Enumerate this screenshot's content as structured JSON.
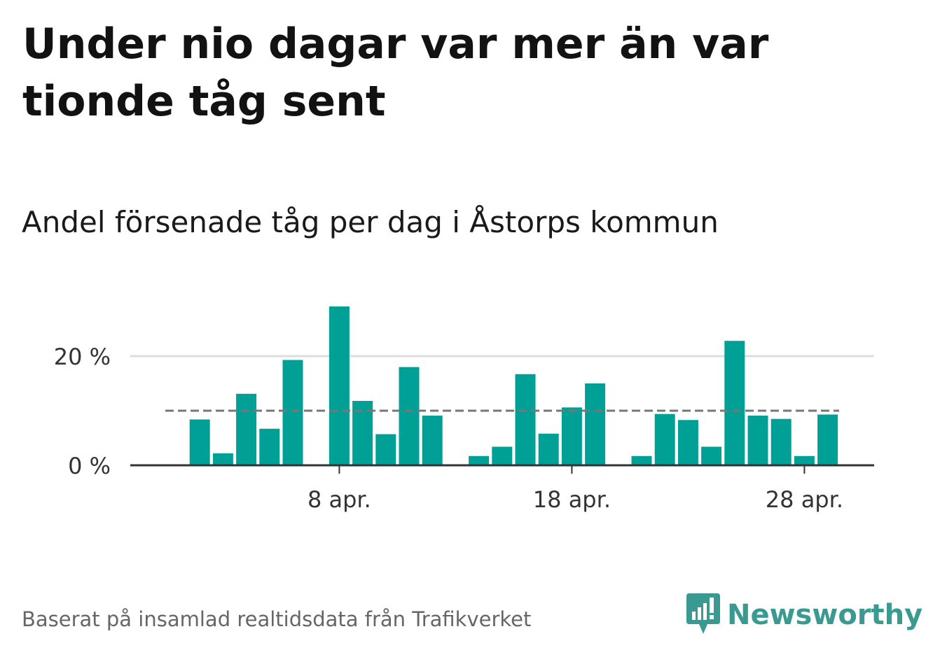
{
  "title": "Under nio dagar var mer än var tionde tåg sent",
  "subtitle": "Andel försenade tåg per dag i Åstorps kommun",
  "footer": "Baserat på insamlad realtidsdata från Trafikverket",
  "brand": {
    "name": "Newsworthy",
    "color": "#3a9a91",
    "icon": "newsworthy-logo-icon"
  },
  "colors": {
    "bar": "#00a096",
    "reference_line": "#777777",
    "grid": "#dddddd",
    "axis": "#333333"
  },
  "chart_data": {
    "type": "bar",
    "x": [
      1,
      2,
      3,
      4,
      5,
      6,
      7,
      8,
      9,
      10,
      11,
      12,
      13,
      14,
      15,
      16,
      17,
      18,
      19,
      20,
      21,
      22,
      23,
      24,
      25,
      26,
      27,
      28,
      29,
      30
    ],
    "values": [
      0,
      8.4,
      2.2,
      13.1,
      6.7,
      19.3,
      0,
      29.1,
      11.8,
      5.7,
      18.0,
      9.1,
      0,
      1.7,
      3.4,
      16.7,
      5.8,
      10.6,
      15.0,
      0,
      1.7,
      9.4,
      8.3,
      3.4,
      22.8,
      9.1,
      8.5,
      1.7,
      9.3,
      0
    ],
    "x_ticks": [
      8,
      18,
      28
    ],
    "x_tick_labels": [
      "8 apr.",
      "18 apr.",
      "28 apr."
    ],
    "y_ticks": [
      0,
      20
    ],
    "y_tick_labels": [
      "0 %",
      "20 %"
    ],
    "ylim": [
      0,
      30
    ],
    "reference_line": 10,
    "grid": true,
    "xlabel": "",
    "ylabel": ""
  }
}
